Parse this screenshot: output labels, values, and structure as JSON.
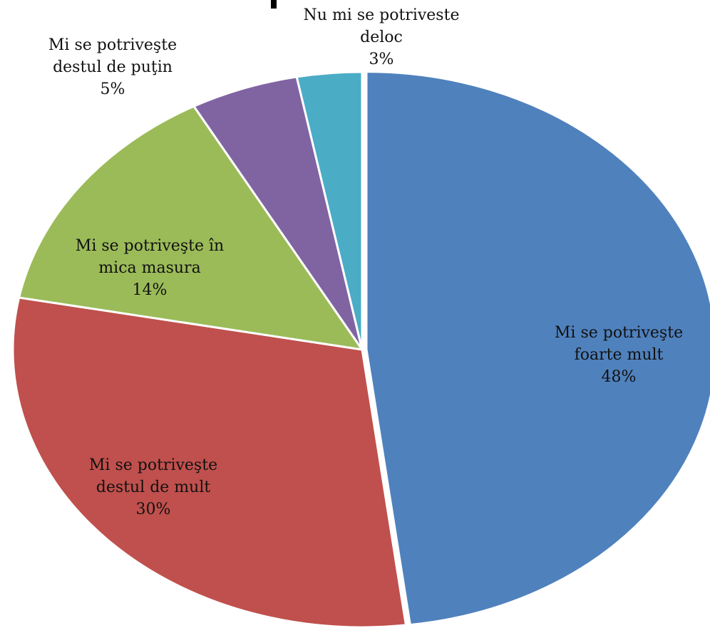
{
  "chart_data": {
    "type": "pie",
    "title": "",
    "slices": [
      {
        "name": "Mi se potriveşte foarte mult",
        "label_lines": [
          "Mi se potriveşte",
          "foarte mult"
        ],
        "percent_label": "48%",
        "value": 48,
        "color": "#4F81BD"
      },
      {
        "name": "Mi se potriveşte destul de mult",
        "label_lines": [
          "Mi se potriveşte",
          "destul de mult"
        ],
        "percent_label": "30%",
        "value": 30,
        "color": "#C0504D"
      },
      {
        "name": "Mi se potriveşte în mica masura",
        "label_lines": [
          "Mi se potriveşte în",
          "mica masura"
        ],
        "percent_label": "14%",
        "value": 14,
        "color": "#9BBB59"
      },
      {
        "name": "Mi se potriveşte destul de puţin",
        "label_lines": [
          "Mi se potriveşte",
          "destul de puţin"
        ],
        "percent_label": "5%",
        "value": 5,
        "color": "#8064A2"
      },
      {
        "name": "Nu mi se potriveste deloc",
        "label_lines": [
          "Nu mi se potriveste",
          "deloc"
        ],
        "percent_label": "3%",
        "value": 3,
        "color": "#4BACC6"
      }
    ],
    "legend": "none"
  }
}
